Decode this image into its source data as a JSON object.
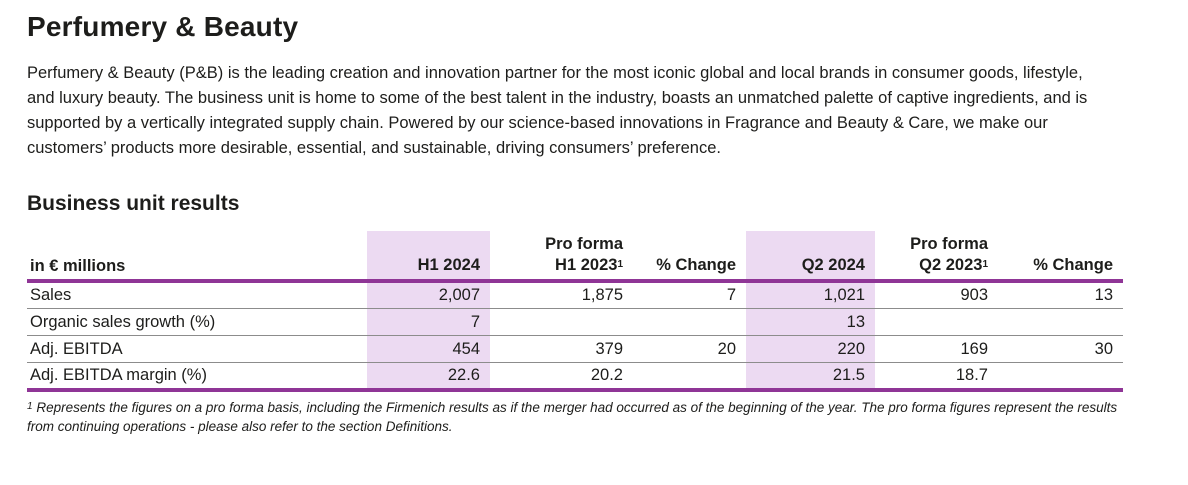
{
  "page": {
    "title": "Perfumery & Beauty",
    "intro": "Perfumery & Beauty (P&B) is the leading creation and innovation partner for the most iconic global and local brands in consumer goods, lifestyle, and luxury beauty. The business unit is home to some of the best talent in the industry, boasts an unmatched palette of captive ingredients, and is supported by a vertically integrated supply chain. Powered by our science-based innovations in Fragrance and Beauty & Care, we make our customers’ products more desirable, essential, and sustainable, driving consumers’ preference.",
    "section_title": "Business unit results"
  },
  "table": {
    "unit_label": "in € millions",
    "columns": [
      {
        "pre": "",
        "label": "H1 2024",
        "sup": "",
        "highlight": true
      },
      {
        "pre": "Pro forma",
        "label": "H1 2023",
        "sup": "1",
        "highlight": false
      },
      {
        "pre": "",
        "label": "% Change",
        "sup": "",
        "highlight": false
      },
      {
        "pre": "",
        "label": "Q2 2024",
        "sup": "",
        "highlight": true
      },
      {
        "pre": "Pro forma",
        "label": "Q2 2023",
        "sup": "1",
        "highlight": false
      },
      {
        "pre": "",
        "label": "% Change",
        "sup": "",
        "highlight": false
      }
    ],
    "rows": [
      {
        "label": "Sales",
        "values": [
          "2,007",
          "1,875",
          "7",
          "1,021",
          "903",
          "13"
        ]
      },
      {
        "label": "Organic sales growth (%)",
        "values": [
          "7",
          "",
          "",
          "13",
          "",
          ""
        ]
      },
      {
        "label": "Adj. EBITDA",
        "values": [
          "454",
          "379",
          "20",
          "220",
          "169",
          "30"
        ]
      },
      {
        "label": "Adj. EBITDA margin (%)",
        "values": [
          "22.6",
          "20.2",
          "",
          "21.5",
          "18.7",
          ""
        ]
      }
    ]
  },
  "footnote": {
    "sup": "1",
    "text": "Represents the figures on a pro forma basis, including the Firmenich results as if the merger had occurred as of the beginning of the year. The pro forma figures represent the results from continuing operations - please also refer to the section Definitions."
  },
  "colors": {
    "accent_purple": "#8F3596",
    "highlight": "#ECDAF2",
    "row_divider": "#8c8c8c",
    "text": "#1d1d1b"
  }
}
